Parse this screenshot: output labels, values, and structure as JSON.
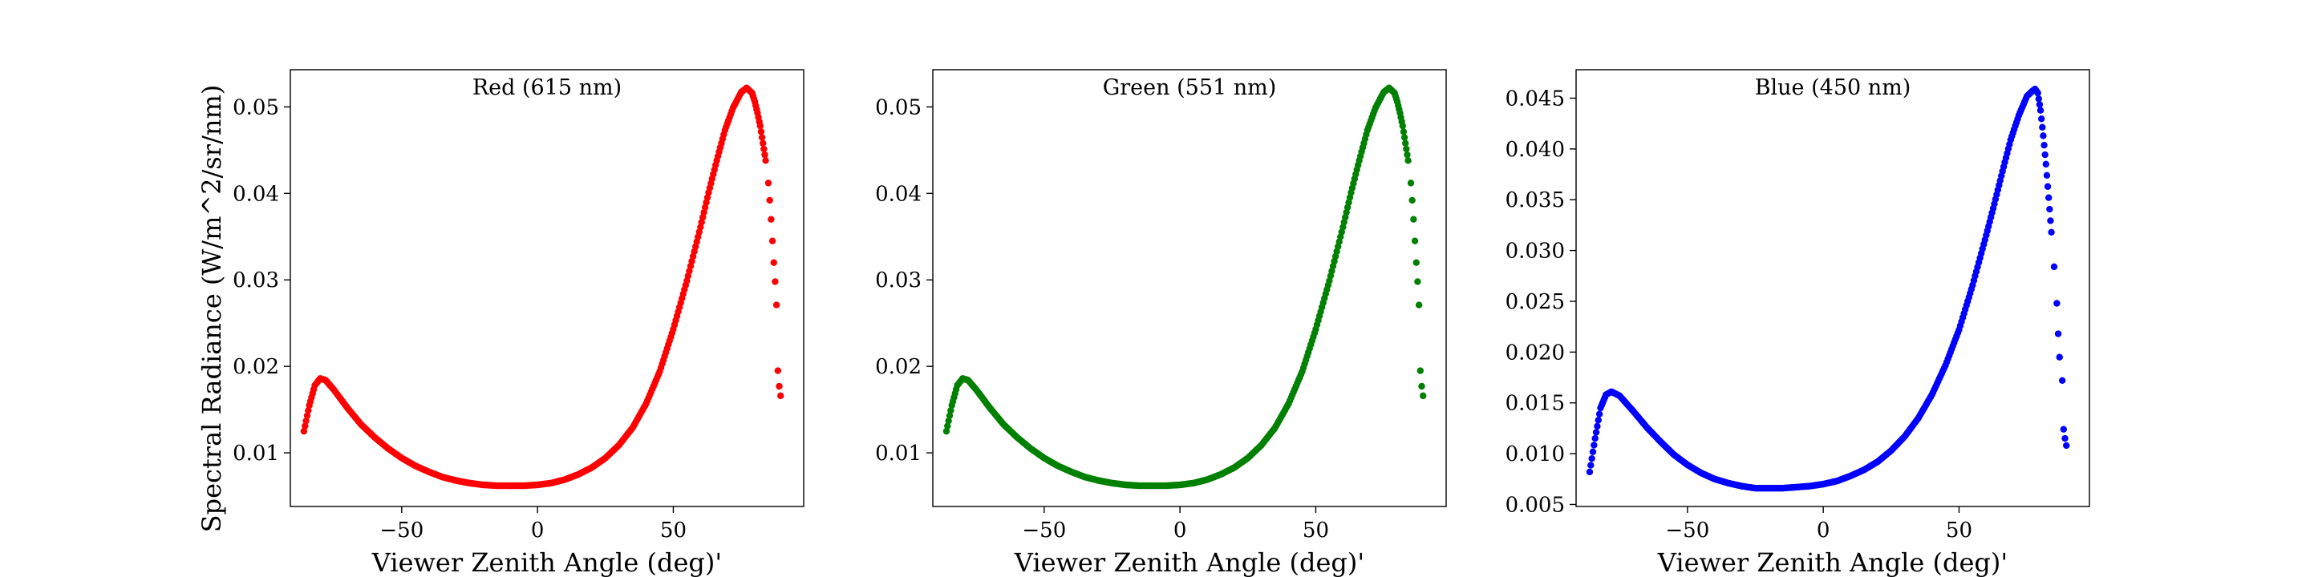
{
  "figure": {
    "ylabel": "Spectral Radiance (W/m^2/sr/nm)",
    "xlabel": "Viewer Zenith Angle (deg)'"
  },
  "chart_data": [
    {
      "type": "scatter",
      "title": "Red (615 nm)",
      "xlabel": "Viewer Zenith Angle (deg)'",
      "ylabel": "Spectral Radiance (W/m^2/sr/nm)",
      "xlim": [
        -91,
        98
      ],
      "ylim": [
        0.0038,
        0.0543
      ],
      "xticks": [
        -50,
        0,
        50
      ],
      "yticks": [
        0.01,
        0.02,
        0.03,
        0.04,
        0.05
      ],
      "ytick_labels": [
        "0.01",
        "0.02",
        "0.03",
        "0.04",
        "0.05"
      ],
      "color": "#ff0000",
      "series": [
        {
          "x": [
            -86,
            -84,
            -82,
            -80,
            -78,
            -75,
            -70,
            -65,
            -60,
            -55,
            -50,
            -45,
            -40,
            -35,
            -30,
            -25,
            -20,
            -15,
            -10,
            -5,
            0,
            5,
            10,
            15,
            20,
            25,
            30,
            35,
            40,
            45,
            50,
            55,
            60,
            63,
            66,
            69,
            72,
            75,
            77,
            79,
            80,
            81,
            82,
            83,
            84,
            85,
            85.5,
            86,
            86.5,
            87,
            87.5,
            88,
            88.5,
            89,
            89.5
          ],
          "y": [
            0.0125,
            0.0155,
            0.0178,
            0.0186,
            0.0184,
            0.0173,
            0.0152,
            0.0133,
            0.0118,
            0.0105,
            0.0094,
            0.0085,
            0.0078,
            0.0072,
            0.0068,
            0.0065,
            0.0063,
            0.0062,
            0.0062,
            0.0062,
            0.0063,
            0.0065,
            0.0069,
            0.0075,
            0.0083,
            0.0094,
            0.0109,
            0.0129,
            0.0157,
            0.0194,
            0.0243,
            0.0299,
            0.0361,
            0.0401,
            0.0438,
            0.0473,
            0.0499,
            0.0517,
            0.0522,
            0.0516,
            0.0506,
            0.0493,
            0.0478,
            0.0458,
            0.0438,
            0.0412,
            0.0392,
            0.037,
            0.0345,
            0.032,
            0.0298,
            0.0271,
            0.0195,
            0.0177,
            0.0166
          ]
        }
      ]
    },
    {
      "type": "scatter",
      "title": "Green (551 nm)",
      "xlabel": "Viewer Zenith Angle (deg)'",
      "ylabel": "",
      "xlim": [
        -91,
        98
      ],
      "ylim": [
        0.0038,
        0.0543
      ],
      "xticks": [
        -50,
        0,
        50
      ],
      "yticks": [
        0.01,
        0.02,
        0.03,
        0.04,
        0.05
      ],
      "ytick_labels": [
        "0.01",
        "0.02",
        "0.03",
        "0.04",
        "0.05"
      ],
      "color": "#008000",
      "series": [
        {
          "x": [
            -86,
            -84,
            -82,
            -80,
            -78,
            -75,
            -70,
            -65,
            -60,
            -55,
            -50,
            -45,
            -40,
            -35,
            -30,
            -25,
            -20,
            -15,
            -10,
            -5,
            0,
            5,
            10,
            15,
            20,
            25,
            30,
            35,
            40,
            45,
            50,
            55,
            60,
            63,
            66,
            69,
            72,
            75,
            77,
            79,
            80,
            81,
            82,
            83,
            84,
            85,
            85.5,
            86,
            86.5,
            87,
            87.5,
            88,
            88.5,
            89,
            89.5
          ],
          "y": [
            0.0125,
            0.0155,
            0.0178,
            0.0186,
            0.0184,
            0.0173,
            0.0152,
            0.0133,
            0.0118,
            0.0105,
            0.0094,
            0.0085,
            0.0078,
            0.0072,
            0.0068,
            0.0065,
            0.0063,
            0.0062,
            0.0062,
            0.0062,
            0.0063,
            0.0065,
            0.0069,
            0.0075,
            0.0083,
            0.0094,
            0.0109,
            0.0129,
            0.0157,
            0.0194,
            0.0243,
            0.0299,
            0.0361,
            0.0401,
            0.0438,
            0.0473,
            0.0499,
            0.0517,
            0.0522,
            0.0516,
            0.0506,
            0.0493,
            0.0478,
            0.0458,
            0.0438,
            0.0412,
            0.0392,
            0.037,
            0.0345,
            0.032,
            0.0298,
            0.0271,
            0.0195,
            0.0177,
            0.0166
          ]
        }
      ]
    },
    {
      "type": "scatter",
      "title": "Blue (450 nm)",
      "xlabel": "Viewer Zenith Angle (deg)'",
      "ylabel": "",
      "xlim": [
        -91,
        98
      ],
      "ylim": [
        0.0048,
        0.0478
      ],
      "xticks": [
        -50,
        0,
        50
      ],
      "yticks": [
        0.005,
        0.01,
        0.015,
        0.02,
        0.025,
        0.03,
        0.035,
        0.04,
        0.045
      ],
      "ytick_labels": [
        "0.005",
        "0.010",
        "0.015",
        "0.020",
        "0.025",
        "0.030",
        "0.035",
        "0.040",
        "0.045"
      ],
      "color": "#0000ff",
      "series": [
        {
          "x": [
            -86,
            -84,
            -82,
            -80,
            -78,
            -75,
            -70,
            -65,
            -60,
            -55,
            -50,
            -45,
            -40,
            -35,
            -30,
            -25,
            -20,
            -15,
            -10,
            -5,
            0,
            5,
            10,
            15,
            20,
            25,
            30,
            35,
            40,
            45,
            50,
            55,
            60,
            63,
            66,
            69,
            72,
            75,
            77,
            78,
            79,
            80,
            81,
            82,
            83,
            84,
            85,
            86,
            86.5,
            87,
            88,
            88.5,
            89,
            89.5
          ],
          "y": [
            0.0082,
            0.0115,
            0.0145,
            0.0158,
            0.0161,
            0.0157,
            0.0142,
            0.0126,
            0.0112,
            0.0099,
            0.0089,
            0.0081,
            0.0075,
            0.0071,
            0.0068,
            0.0066,
            0.0066,
            0.0066,
            0.0067,
            0.0068,
            0.007,
            0.0073,
            0.0078,
            0.0084,
            0.0092,
            0.0103,
            0.0117,
            0.0135,
            0.0158,
            0.0187,
            0.0222,
            0.0266,
            0.0315,
            0.0346,
            0.0378,
            0.0409,
            0.0433,
            0.0452,
            0.0457,
            0.0459,
            0.0455,
            0.0438,
            0.0413,
            0.0385,
            0.0352,
            0.0318,
            0.0284,
            0.0248,
            0.0218,
            0.0195,
            0.0172,
            0.0124,
            0.0115,
            0.0108
          ]
        }
      ]
    }
  ]
}
